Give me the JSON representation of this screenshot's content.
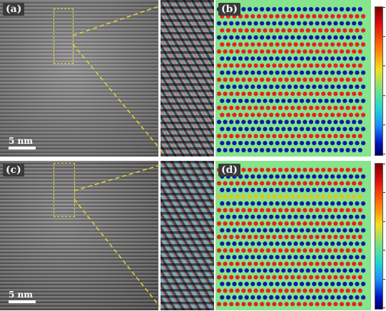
{
  "panels": [
    {
      "id": "a",
      "label": "(a)",
      "scale": "5 nm"
    },
    {
      "id": "b",
      "label": "(b)"
    },
    {
      "id": "c",
      "label": "(c)",
      "scale": "5 nm"
    },
    {
      "id": "d",
      "label": "(d)"
    }
  ],
  "colors": {
    "dot_red": "#e82020",
    "dot_yellow": "#e8c020",
    "dot_blue": "#0d1aa8",
    "map_background": "#86e48c",
    "roi_outline": "#e3d834"
  },
  "map_b_rows": [
    "blue",
    "red",
    "blue",
    "red",
    "blue",
    "red",
    "red",
    "blue",
    "red",
    "blue",
    "red",
    "blue",
    "red",
    "blue",
    "red",
    "red",
    "blue",
    "blue",
    "red",
    "blue",
    "blue"
  ],
  "map_d_rows": [
    "red",
    "blue",
    "red",
    "blue",
    "yellow",
    "blue",
    "red",
    "blue",
    "red",
    "blue",
    "red",
    "blue",
    "red",
    "blue",
    "red",
    "blue",
    "red",
    "blue",
    "red",
    "blue",
    "red"
  ]
}
